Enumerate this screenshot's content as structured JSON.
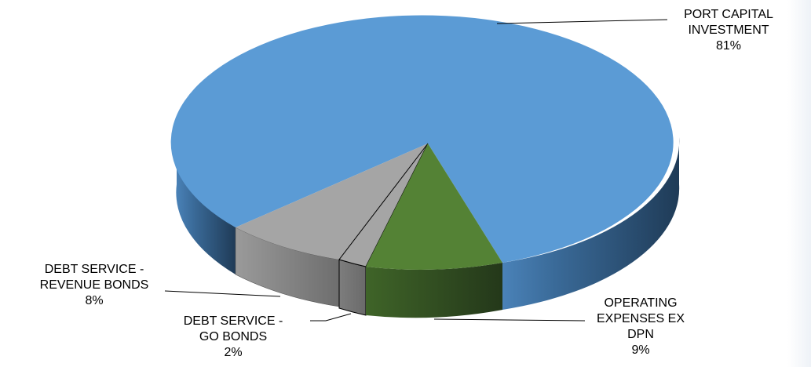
{
  "chart_data": {
    "type": "pie",
    "style": "3d",
    "slices": [
      {
        "label": "PORT CAPITAL INVESTMENT",
        "label_lines": [
          "PORT CAPITAL",
          "INVESTMENT"
        ],
        "value": 81,
        "value_label": "81%",
        "color": "#5B9BD5"
      },
      {
        "label": "OPERATING EXPENSES EX DPN",
        "label_lines": [
          "OPERATING",
          "EXPENSES EX",
          "DPN"
        ],
        "value": 9,
        "value_label": "9%",
        "color": "#548235"
      },
      {
        "label": "DEBT SERVICE - GO BONDS",
        "label_lines": [
          "DEBT SERVICE -",
          "GO BONDS"
        ],
        "value": 2,
        "value_label": "2%",
        "color": "#A5A5A5"
      },
      {
        "label": "DEBT SERVICE - REVENUE BONDS",
        "label_lines": [
          "DEBT SERVICE -",
          "REVENUE BONDS"
        ],
        "value": 8,
        "value_label": "8%",
        "color": "#A5A5A5"
      }
    ]
  }
}
